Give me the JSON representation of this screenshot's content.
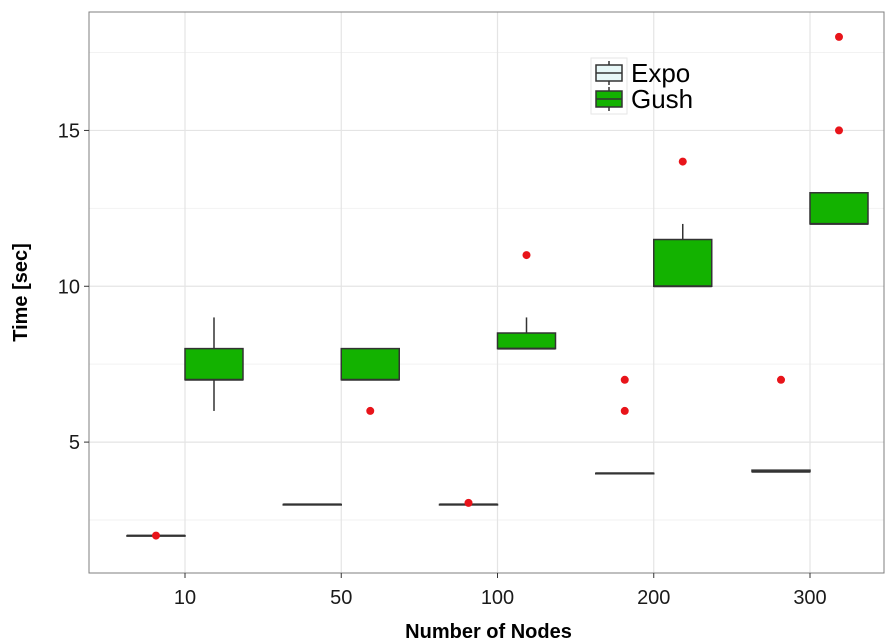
{
  "chart_data": {
    "type": "boxplot",
    "title": "",
    "xlabel": "Number of Nodes",
    "ylabel": "Time [sec]",
    "categories": [
      "10",
      "50",
      "100",
      "200",
      "300"
    ],
    "ylim": [
      0.8,
      18.8
    ],
    "yticks": [
      5,
      10,
      15
    ],
    "grid": true,
    "legend_position": "top-right",
    "outlier_color": "#e8141a",
    "series": [
      {
        "name": "Expo",
        "color": "#e8f8f8",
        "boxes": [
          {
            "lower_whisker": 2,
            "q1": 2,
            "median": 2,
            "q3": 2,
            "upper_whisker": 2,
            "outliers": [
              2
            ]
          },
          {
            "lower_whisker": 3,
            "q1": 3,
            "median": 3,
            "q3": 3,
            "upper_whisker": 3,
            "outliers": []
          },
          {
            "lower_whisker": 3,
            "q1": 3,
            "median": 3,
            "q3": 3,
            "upper_whisker": 3,
            "outliers": [
              3.05
            ]
          },
          {
            "lower_whisker": 4,
            "q1": 4,
            "median": 4,
            "q3": 4,
            "upper_whisker": 4,
            "outliers": [
              6,
              7
            ]
          },
          {
            "lower_whisker": 4.05,
            "q1": 4.05,
            "median": 4.05,
            "q3": 4.1,
            "upper_whisker": 4.1,
            "outliers": [
              7
            ]
          }
        ]
      },
      {
        "name": "Gush",
        "color": "#13b200",
        "boxes": [
          {
            "lower_whisker": 6,
            "q1": 7,
            "median": 7,
            "q3": 8,
            "upper_whisker": 9,
            "outliers": []
          },
          {
            "lower_whisker": 7,
            "q1": 7,
            "median": 7,
            "q3": 8,
            "upper_whisker": 8,
            "outliers": [
              6
            ]
          },
          {
            "lower_whisker": 8,
            "q1": 8,
            "median": 8,
            "q3": 8.5,
            "upper_whisker": 9,
            "outliers": [
              11
            ]
          },
          {
            "lower_whisker": 10,
            "q1": 10,
            "median": 10,
            "q3": 11.5,
            "upper_whisker": 12,
            "outliers": [
              14
            ]
          },
          {
            "lower_whisker": 12,
            "q1": 12,
            "median": 12,
            "q3": 13,
            "upper_whisker": 13,
            "outliers": [
              15,
              18
            ]
          }
        ]
      }
    ]
  }
}
